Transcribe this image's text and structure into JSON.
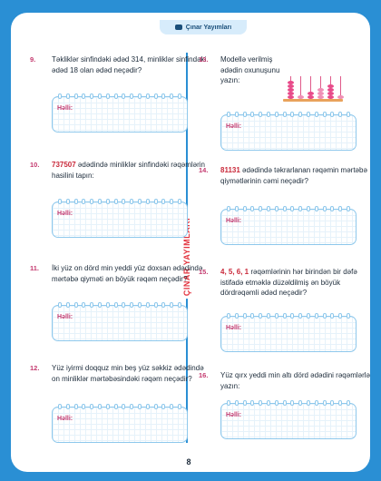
{
  "header": {
    "title": "Çınar Yayımları"
  },
  "watermark": "ÇINAR YAYIMLARI",
  "page_number": "8",
  "answer_label": "Həlli:",
  "questions": [
    {
      "num": "9.",
      "text": "Təkliklər sinfindəki ədəd 314, minliklər sinfindəki ədəd 18 olan ədəd neçədir?"
    },
    {
      "num": "10.",
      "highlight": "737507",
      "text": " ədədində minliklər sinfindəki rəqəmlərin hasilini tapın:"
    },
    {
      "num": "11.",
      "text": "İki yüz on dörd min yeddi yüz doxsan ədədində mərtəbə qiyməti ən böyük rəqəm neçədir?"
    },
    {
      "num": "12.",
      "text": "Yüz iyirmi doqquz min beş yüz səkkiz ədədində on minliklər mərtəbəsindəki rəqəm neçədir?"
    },
    {
      "num": "13.",
      "text": "Modellə verilmiş ədədin oxunuşunu yazın:"
    },
    {
      "num": "14.",
      "highlight": "81131",
      "text": " ədədində təkrarlanan rəqəmin mərtəbə qiymətlərinin cəmi neçədir?"
    },
    {
      "num": "15.",
      "highlight": "4, 5, 6, 1",
      "text": " rəqəmlərinin hər birindən bir dəfə istifadə etməklə düzəldilmiş ən böyük dördrəqəmli ədəd neçədir?"
    },
    {
      "num": "16.",
      "text": "Yüz qırx yeddi min altı dörd ədədini rəqəmlərlə yazın:"
    }
  ],
  "colors": {
    "frame": "#2a8fd4",
    "accent": "#c9293a",
    "number": "#c43a6f",
    "grid_border": "#8ec8ec"
  }
}
